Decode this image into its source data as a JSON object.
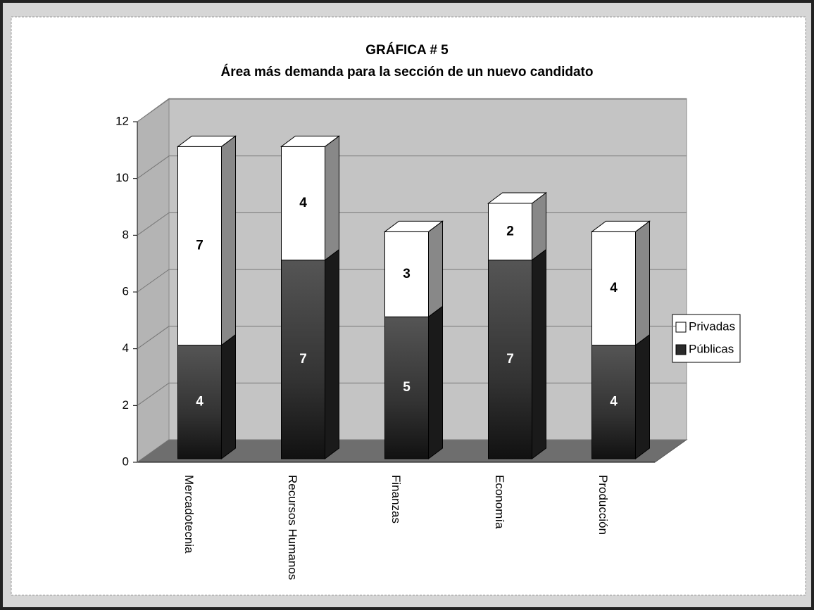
{
  "chart_data": {
    "type": "bar3d_stacked",
    "title": "GRÁFICA # 5",
    "subtitle": "Área más demanda para la sección de un nuevo candidato",
    "categories": [
      "Mercadotecnia",
      "Recursos Humanos",
      "Finanzas",
      "Economía",
      "Producción"
    ],
    "series": [
      {
        "name": "Públicas",
        "color": "#2a2a2a",
        "values": [
          4,
          7,
          5,
          7,
          4
        ]
      },
      {
        "name": "Privadas",
        "color": "#ffffff",
        "values": [
          7,
          4,
          3,
          2,
          4
        ]
      }
    ],
    "ylim": [
      0,
      12
    ],
    "yticks": [
      0,
      2,
      4,
      6,
      8,
      10,
      12
    ],
    "grid": true,
    "legend": "right"
  }
}
